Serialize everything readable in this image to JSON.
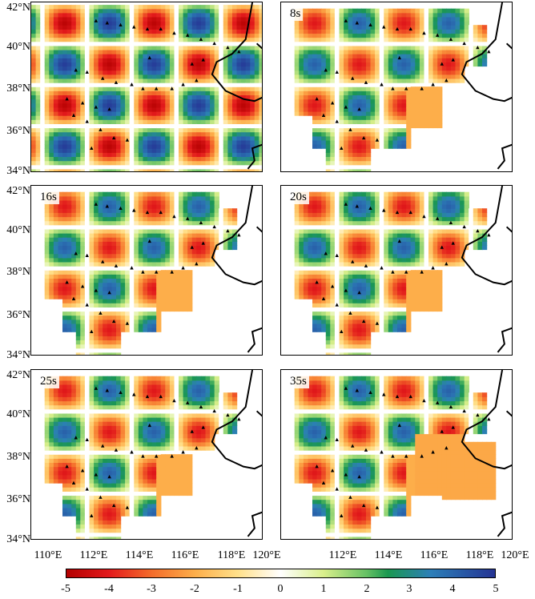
{
  "panels": [
    {
      "id": "p1",
      "label": ""
    },
    {
      "id": "p2",
      "label": "8s"
    },
    {
      "id": "p3",
      "label": "16s"
    },
    {
      "id": "p4",
      "label": "20s"
    },
    {
      "id": "p5",
      "label": "25s"
    },
    {
      "id": "p6",
      "label": "35s"
    }
  ],
  "y_ticks": [
    "42°N",
    "40°N",
    "38°N",
    "36°N",
    "34°N"
  ],
  "x_ticks_left": [
    "110°E",
    "112°E",
    "114°E",
    "116°E",
    "118°E"
  ],
  "x_tick_shared": "120°E",
  "x_ticks_right": [
    "112°E",
    "114°E",
    "116°E",
    "118°E",
    "120°E"
  ],
  "colorbar": {
    "ticks": [
      "-5",
      "-4",
      "-3",
      "-2",
      "-1",
      "0",
      "1",
      "2",
      "3",
      "4",
      "5"
    ],
    "range": [
      -5,
      5
    ],
    "colors": {
      "min": "#b30000",
      "mid": "#ffffff",
      "max": "#253494"
    }
  }
}
